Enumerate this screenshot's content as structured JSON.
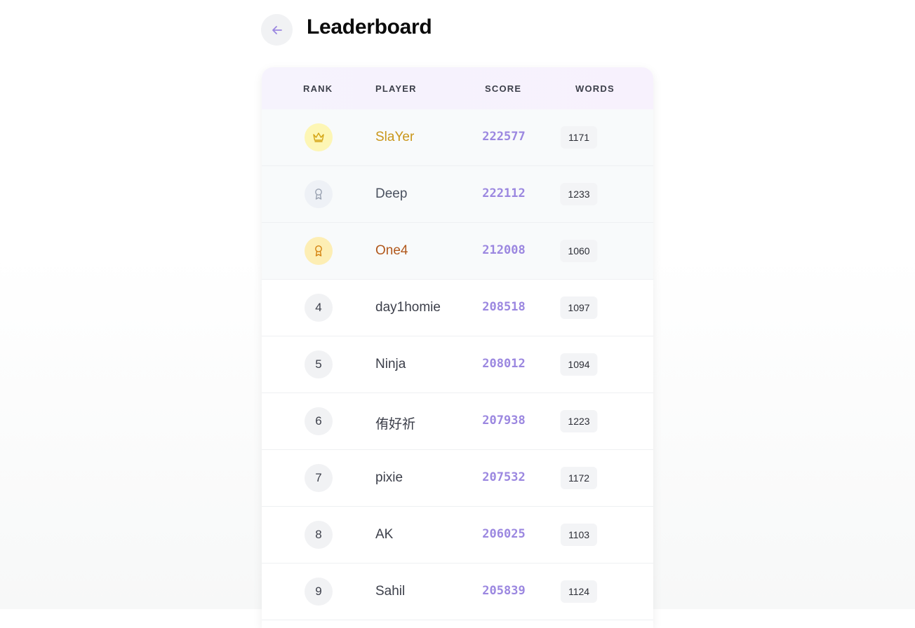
{
  "header": {
    "title": "Leaderboard",
    "back_icon": "arrow-left-icon"
  },
  "colors": {
    "accent": "#9b87e0",
    "gold": "#c9961a",
    "bronze": "#b1581c",
    "silver": "#4b5260"
  },
  "table": {
    "columns": [
      "RANK",
      "PLAYER",
      "SCORE",
      "WORDS"
    ],
    "rows": [
      {
        "rank": "1",
        "icon": "crown-icon",
        "player": "SlaYer",
        "score": "222577",
        "words": "1171"
      },
      {
        "rank": "2",
        "icon": "medal-icon",
        "player": "Deep",
        "score": "222112",
        "words": "1233"
      },
      {
        "rank": "3",
        "icon": "medal-icon",
        "player": "One4",
        "score": "212008",
        "words": "1060"
      },
      {
        "rank": "4",
        "player": "day1homie",
        "score": "208518",
        "words": "1097"
      },
      {
        "rank": "5",
        "player": "Ninja",
        "score": "208012",
        "words": "1094"
      },
      {
        "rank": "6",
        "player": "侑好祈",
        "score": "207938",
        "words": "1223"
      },
      {
        "rank": "7",
        "player": "pixie",
        "score": "207532",
        "words": "1172"
      },
      {
        "rank": "8",
        "player": "AK",
        "score": "206025",
        "words": "1103"
      },
      {
        "rank": "9",
        "player": "Sahil",
        "score": "205839",
        "words": "1124"
      }
    ]
  }
}
